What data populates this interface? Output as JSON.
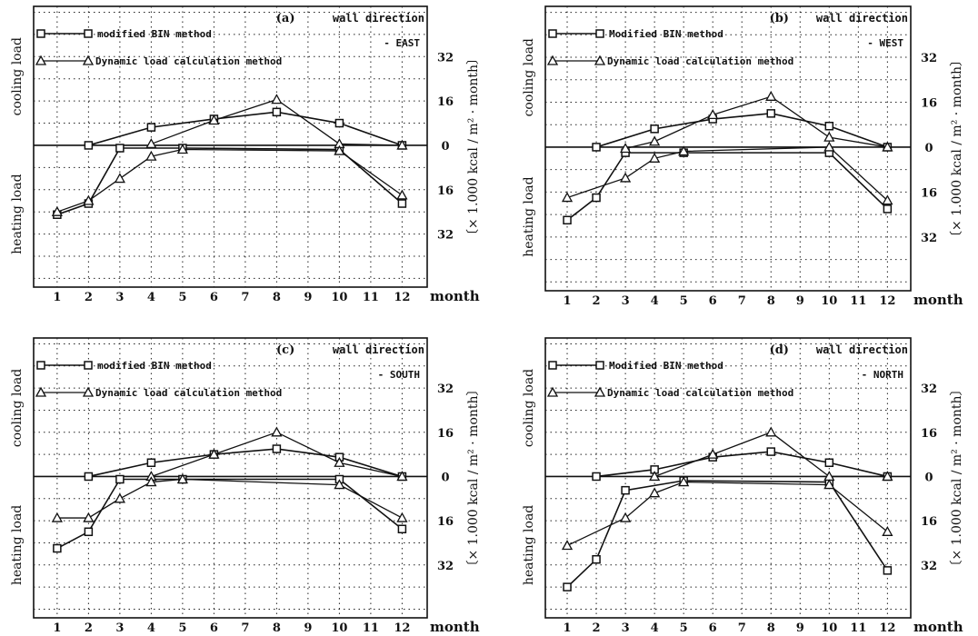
{
  "figure": {
    "month_label": "month",
    "cooling_label": "cooling load",
    "heating_label": "heating load",
    "units_label": "〔× 1.000 kcal / m² · month〕",
    "wall_direction_label": "wall direction"
  },
  "chart_data": [
    {
      "type": "line",
      "panel_label": "(a)",
      "direction": "- EAST",
      "x": [
        1,
        2,
        3,
        4,
        5,
        6,
        7,
        8,
        9,
        10,
        11,
        12
      ],
      "x_ticks": [
        "1",
        "2",
        "3",
        "4",
        "5",
        "6",
        "7",
        "8",
        "9",
        "10",
        "11",
        "12"
      ],
      "y_ticks_cooling": [
        "32",
        "16",
        "0"
      ],
      "y_ticks_heating": [
        "16",
        "32"
      ],
      "ylim": [
        -36,
        36
      ],
      "series": [
        {
          "name": "modified BIN method",
          "marker": "square",
          "cooling": {
            "x": [
              2,
              4,
              6,
              8,
              10,
              12
            ],
            "y": [
              0,
              6.5,
              9.5,
              12,
              8,
              0
            ]
          },
          "heating": {
            "x": [
              1,
              2,
              3,
              5,
              10,
              12
            ],
            "y": [
              -25,
              -21,
              -1,
              -1,
              -1.5,
              -21
            ]
          }
        },
        {
          "name": "Dynamic load calculation method",
          "marker": "triangle",
          "cooling": {
            "x": [
              4,
              6,
              8,
              10,
              12
            ],
            "y": [
              0.5,
              9,
              16.5,
              0.5,
              0
            ]
          },
          "heating": {
            "x": [
              1,
              2,
              3,
              4,
              5,
              10,
              12
            ],
            "y": [
              -24,
              -20,
              -12,
              -4,
              -1.5,
              -2,
              -18
            ]
          }
        }
      ]
    },
    {
      "type": "line",
      "panel_label": "(b)",
      "direction": "- WEST",
      "x": [
        1,
        2,
        3,
        4,
        5,
        6,
        7,
        8,
        9,
        10,
        11,
        12
      ],
      "x_ticks": [
        "1",
        "2",
        "3",
        "4",
        "5",
        "6",
        "7",
        "8",
        "9",
        "10",
        "11",
        "12"
      ],
      "y_ticks_cooling": [
        "32",
        "16",
        "0"
      ],
      "y_ticks_heating": [
        "16",
        "32"
      ],
      "ylim": [
        -36,
        36
      ],
      "series": [
        {
          "name": "Modified BIN method",
          "marker": "square",
          "cooling": {
            "x": [
              2,
              4,
              6,
              8,
              10,
              12
            ],
            "y": [
              0,
              6.5,
              10,
              12,
              7.5,
              0
            ]
          },
          "heating": {
            "x": [
              1,
              2,
              3,
              5,
              10,
              12
            ],
            "y": [
              -26,
              -18,
              -2,
              -2,
              -2,
              -22
            ]
          }
        },
        {
          "name": "Dynamic load calculation method",
          "marker": "triangle",
          "cooling": {
            "x": [
              3,
              4,
              6,
              8,
              10,
              12
            ],
            "y": [
              -0.5,
              2,
              11.5,
              18,
              3.5,
              0
            ]
          },
          "heating": {
            "x": [
              1,
              3,
              4,
              5,
              10,
              12
            ],
            "y": [
              -18,
              -11,
              -4,
              -1.5,
              0,
              -19
            ]
          }
        }
      ]
    },
    {
      "type": "line",
      "panel_label": "(c)",
      "direction": "- SOUTH",
      "x": [
        1,
        2,
        3,
        4,
        5,
        6,
        7,
        8,
        9,
        10,
        11,
        12
      ],
      "x_ticks": [
        "1",
        "2",
        "3",
        "4",
        "5",
        "6",
        "7",
        "8",
        "9",
        "10",
        "11",
        "12"
      ],
      "y_ticks_cooling": [
        "32",
        "16",
        "0"
      ],
      "y_ticks_heating": [
        "16",
        "32"
      ],
      "ylim": [
        -36,
        36
      ],
      "series": [
        {
          "name": "modified BIN method",
          "marker": "square",
          "cooling": {
            "x": [
              2,
              4,
              6,
              8,
              10,
              12
            ],
            "y": [
              0,
              5,
              8,
              10,
              7,
              0
            ]
          },
          "heating": {
            "x": [
              1,
              2,
              3,
              5,
              10,
              12
            ],
            "y": [
              -26,
              -20,
              -1,
              -1,
              -1,
              -19
            ]
          }
        },
        {
          "name": "Dynamic load calculation method",
          "marker": "triangle",
          "cooling": {
            "x": [
              4,
              6,
              8,
              10,
              12
            ],
            "y": [
              0,
              8,
              16,
              5,
              0
            ]
          },
          "heating": {
            "x": [
              1,
              2,
              3,
              4,
              5,
              10,
              12
            ],
            "y": [
              -15,
              -15,
              -8,
              -2,
              -1,
              -3,
              -15
            ]
          }
        }
      ]
    },
    {
      "type": "line",
      "panel_label": "(d)",
      "direction": "- NORTH",
      "x": [
        1,
        2,
        3,
        4,
        5,
        6,
        7,
        8,
        9,
        10,
        11,
        12
      ],
      "x_ticks": [
        "1",
        "2",
        "3",
        "4",
        "5",
        "6",
        "7",
        "8",
        "9",
        "10",
        "11",
        "12"
      ],
      "y_ticks_cooling": [
        "32",
        "16",
        "0"
      ],
      "y_ticks_heating": [
        "16",
        "32"
      ],
      "ylim": [
        -40,
        40
      ],
      "series": [
        {
          "name": "Modified BIN method",
          "marker": "square",
          "cooling": {
            "x": [
              2,
              4,
              6,
              8,
              10,
              12
            ],
            "y": [
              0,
              2.5,
              7,
              9,
              5,
              0
            ]
          },
          "heating": {
            "x": [
              1,
              2,
              3,
              5,
              10,
              12
            ],
            "y": [
              -40,
              -30,
              -5,
              -1.5,
              -2,
              -34
            ]
          }
        },
        {
          "name": "Dynamic load calculation method",
          "marker": "triangle",
          "cooling": {
            "x": [
              4,
              6,
              8,
              10,
              12
            ],
            "y": [
              0,
              8,
              16,
              0,
              0
            ]
          },
          "heating": {
            "x": [
              1,
              3,
              4,
              5,
              10,
              12
            ],
            "y": [
              -25,
              -15,
              -6,
              -2,
              -3,
              -20
            ]
          }
        }
      ]
    }
  ]
}
